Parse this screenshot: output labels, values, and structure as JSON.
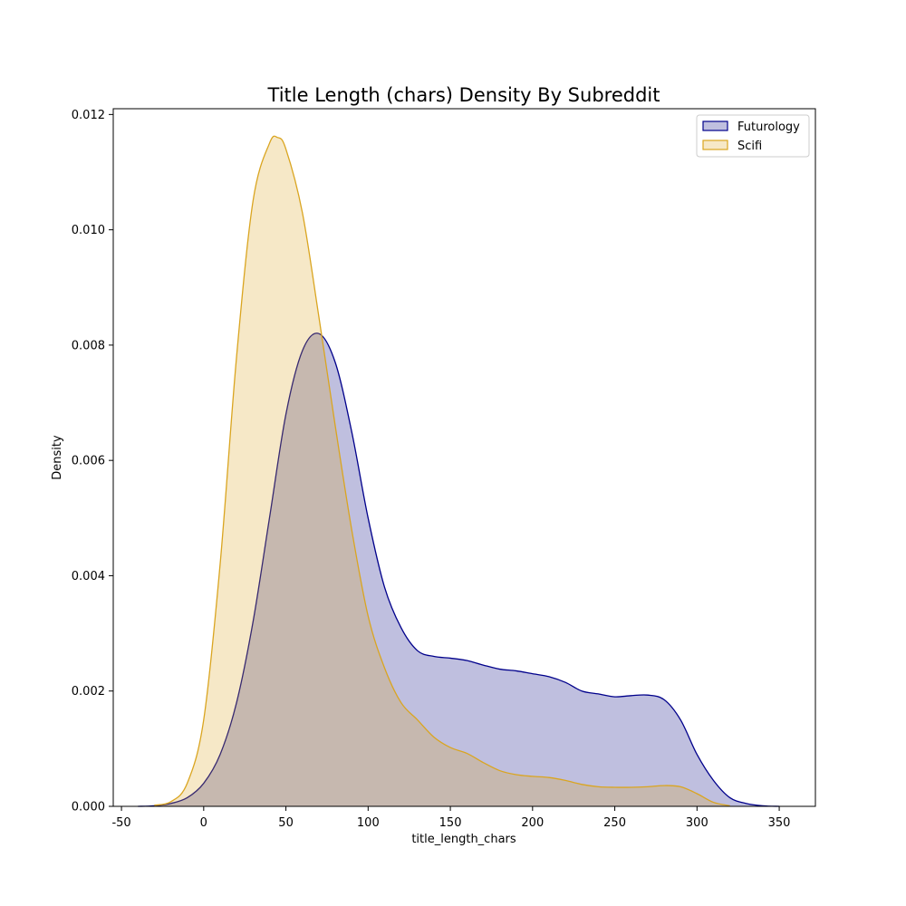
{
  "chart_data": {
    "type": "area",
    "title": "Title Length (chars) Density By Subreddit",
    "xlabel": "title_length_chars",
    "ylabel": "Density",
    "xlim": [
      -55,
      372
    ],
    "ylim": [
      0,
      0.0121
    ],
    "xticks": [
      -50,
      0,
      50,
      100,
      150,
      200,
      250,
      300,
      350
    ],
    "yticks": [
      0.0,
      0.002,
      0.004,
      0.006,
      0.008,
      0.01,
      0.012
    ],
    "ytick_labels": [
      "0.000",
      "0.002",
      "0.004",
      "0.006",
      "0.008",
      "0.010",
      "0.012"
    ],
    "grid": false,
    "legend_placement": "top-right",
    "series": [
      {
        "name": "Futurology",
        "line_color": "#00008b",
        "fill_color": "#000080",
        "fill_opacity": 0.25,
        "x": [
          -40,
          -30,
          -20,
          -10,
          0,
          10,
          20,
          30,
          40,
          50,
          60,
          70,
          80,
          90,
          100,
          110,
          120,
          130,
          140,
          150,
          160,
          170,
          180,
          190,
          200,
          210,
          220,
          230,
          240,
          250,
          260,
          270,
          280,
          290,
          300,
          310,
          320,
          330,
          340,
          350
        ],
        "y": [
          0,
          1e-05,
          5e-05,
          0.00015,
          0.0004,
          0.0009,
          0.0018,
          0.0032,
          0.005,
          0.0068,
          0.0079,
          0.0082,
          0.0077,
          0.0065,
          0.005,
          0.0038,
          0.0031,
          0.0027,
          0.0026,
          0.00257,
          0.00253,
          0.00245,
          0.00238,
          0.00235,
          0.0023,
          0.00225,
          0.00215,
          0.002,
          0.00195,
          0.0019,
          0.00192,
          0.00193,
          0.00185,
          0.0015,
          0.0009,
          0.00045,
          0.00015,
          5e-05,
          1e-05,
          0
        ]
      },
      {
        "name": "Scifi",
        "line_color": "#daa520",
        "fill_color": "#daa520",
        "fill_opacity": 0.25,
        "x": [
          -30,
          -20,
          -10,
          0,
          10,
          20,
          30,
          40,
          45,
          50,
          60,
          70,
          80,
          90,
          100,
          110,
          120,
          130,
          140,
          150,
          160,
          170,
          180,
          190,
          200,
          210,
          220,
          230,
          240,
          250,
          260,
          270,
          280,
          290,
          300,
          310,
          320
        ],
        "y": [
          2e-05,
          8e-05,
          0.0004,
          0.0015,
          0.0042,
          0.0078,
          0.0105,
          0.0115,
          0.0116,
          0.0114,
          0.0103,
          0.0085,
          0.0066,
          0.0048,
          0.0033,
          0.0024,
          0.0018,
          0.0015,
          0.0012,
          0.00102,
          0.00092,
          0.00076,
          0.00062,
          0.00055,
          0.00052,
          0.0005,
          0.00045,
          0.00038,
          0.00034,
          0.00033,
          0.00033,
          0.00034,
          0.00036,
          0.00034,
          0.00022,
          7e-05,
          1e-05
        ]
      }
    ]
  }
}
